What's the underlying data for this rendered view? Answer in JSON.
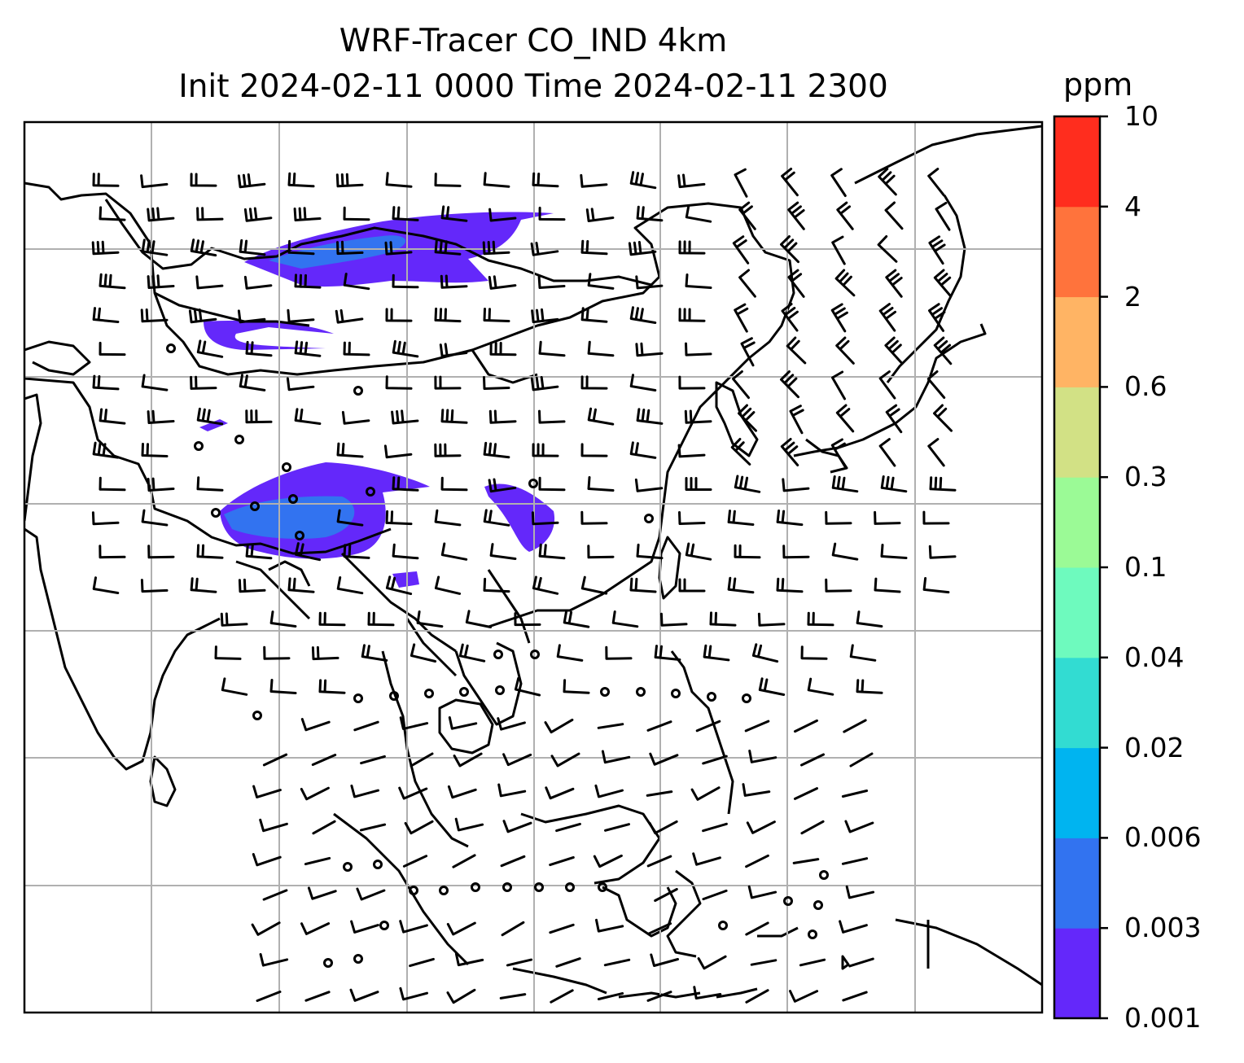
{
  "title": {
    "line1": "WRF-Tracer CO_IND 4km",
    "line2": "Init 2024-02-11 0000 Time 2024-02-11 2300"
  },
  "colorbar": {
    "units": "ppm",
    "levels": [
      "0.001",
      "0.003",
      "0.006",
      "0.02",
      "0.04",
      "0.1",
      "0.3",
      "0.6",
      "2",
      "4",
      "10"
    ],
    "colors": [
      "#6428fa",
      "#3273f0",
      "#00b4f0",
      "#32dcd2",
      "#6efabe",
      "#9bfa96",
      "#d2e185",
      "#ffb464",
      "#ff733c",
      "#ff2d1e"
    ]
  },
  "map": {
    "gridlines": true,
    "tracer_field": "CO_IND",
    "features": [
      "coastlines",
      "country-borders",
      "wind-barbs",
      "calm-circles"
    ]
  }
}
